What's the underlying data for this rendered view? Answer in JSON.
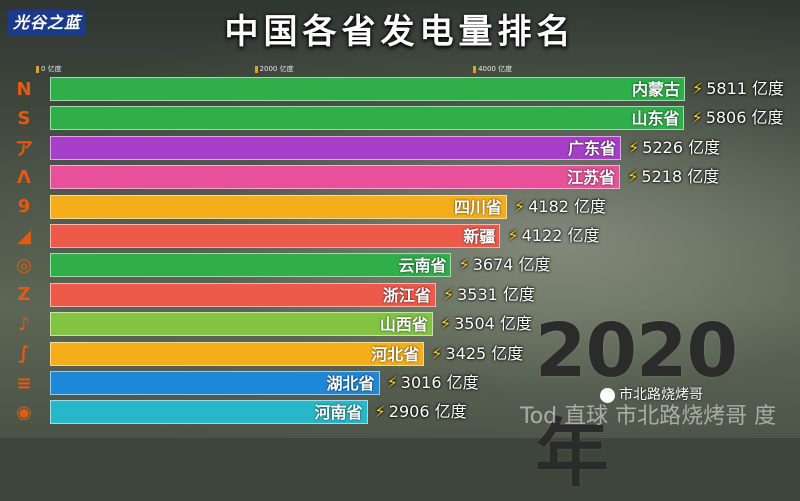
{
  "header": {
    "logo_text": "光谷之蓝",
    "title": "中国各省发电量排名"
  },
  "unit_suffix": "亿度",
  "year": "2020年",
  "watermark": {
    "account": "市北路烧烤哥",
    "overlay": "Tod 直球 市北路烧烤哥 度"
  },
  "icon_glyphs": [
    "N",
    "S",
    "ア",
    "Λ",
    "9",
    "◢",
    "◎",
    "Z",
    "♪",
    "∫",
    "≡",
    "◉"
  ],
  "chart_data": {
    "type": "bar",
    "orientation": "horizontal",
    "title": "中国各省发电量排名",
    "unit": "亿度",
    "xlim": [
      0,
      6200
    ],
    "tick_labels": [
      "0 亿度",
      "2000 亿度",
      "4000 亿度"
    ],
    "tick_values": [
      0,
      2000,
      4000
    ],
    "categories": [
      "内蒙古",
      "山东省",
      "广东省",
      "江苏省",
      "四川省",
      "新疆",
      "云南省",
      "浙江省",
      "山西省",
      "河北省",
      "湖北省",
      "河南省"
    ],
    "values": [
      5811,
      5806,
      5226,
      5218,
      4182,
      4122,
      3674,
      3531,
      3504,
      3425,
      3016,
      2906
    ],
    "colors": [
      "#2fae4a",
      "#2fae4a",
      "#a63fc8",
      "#e8509a",
      "#f6ad1a",
      "#ee5a4a",
      "#2fae4a",
      "#ee5a4a",
      "#82c341",
      "#f6ad1a",
      "#1e88d8",
      "#27b7c8"
    ]
  }
}
